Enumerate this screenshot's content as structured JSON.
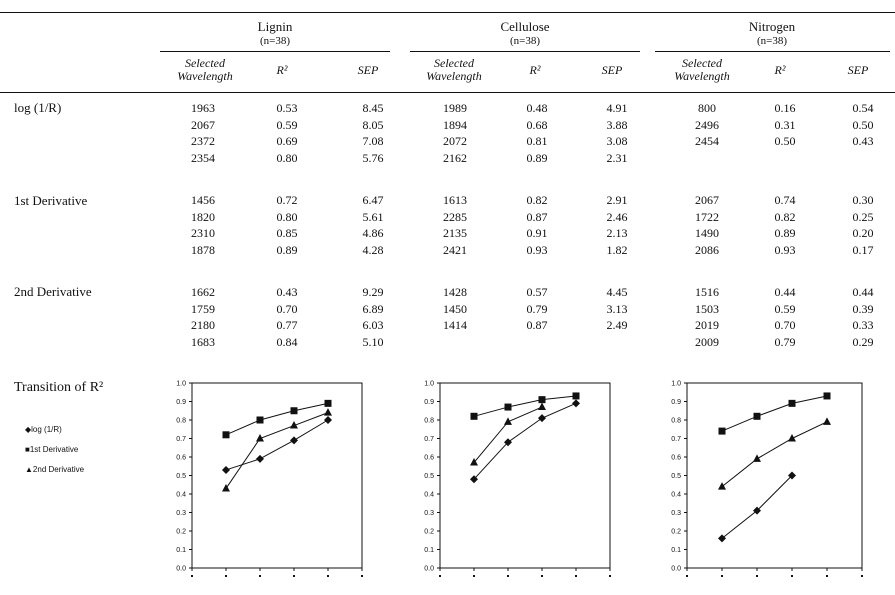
{
  "groups": [
    {
      "name": "Lignin",
      "n": "(n=38)"
    },
    {
      "name": "Cellulose",
      "n": "(n=38)"
    },
    {
      "name": "Nitrogen",
      "n": "(n=38)"
    }
  ],
  "col_headers": {
    "wavelength_line1": "Selected",
    "wavelength_line2": "Wavelength",
    "r2": "R²",
    "sep": "SEP"
  },
  "row_labels": {
    "log": "log (1/R)",
    "d1": "1st Derivative",
    "d2": "2nd Derivative",
    "transition": "Transition of R²"
  },
  "rows": {
    "log": [
      [
        "1963",
        "0.53",
        "8.45",
        "1989",
        "0.48",
        "4.91",
        "800",
        "0.16",
        "0.54"
      ],
      [
        "2067",
        "0.59",
        "8.05",
        "1894",
        "0.68",
        "3.88",
        "2496",
        "0.31",
        "0.50"
      ],
      [
        "2372",
        "0.69",
        "7.08",
        "2072",
        "0.81",
        "3.08",
        "2454",
        "0.50",
        "0.43"
      ],
      [
        "2354",
        "0.80",
        "5.76",
        "2162",
        "0.89",
        "2.31",
        "",
        "",
        ""
      ]
    ],
    "d1": [
      [
        "1456",
        "0.72",
        "6.47",
        "1613",
        "0.82",
        "2.91",
        "2067",
        "0.74",
        "0.30"
      ],
      [
        "1820",
        "0.80",
        "5.61",
        "2285",
        "0.87",
        "2.46",
        "1722",
        "0.82",
        "0.25"
      ],
      [
        "2310",
        "0.85",
        "4.86",
        "2135",
        "0.91",
        "2.13",
        "1490",
        "0.89",
        "0.20"
      ],
      [
        "1878",
        "0.89",
        "4.28",
        "2421",
        "0.93",
        "1.82",
        "2086",
        "0.93",
        "0.17"
      ]
    ],
    "d2": [
      [
        "1662",
        "0.43",
        "9.29",
        "1428",
        "0.57",
        "4.45",
        "1516",
        "0.44",
        "0.44"
      ],
      [
        "1759",
        "0.70",
        "6.89",
        "1450",
        "0.79",
        "3.13",
        "1503",
        "0.59",
        "0.39"
      ],
      [
        "2180",
        "0.77",
        "6.03",
        "1414",
        "0.87",
        "2.49",
        "2019",
        "0.70",
        "0.33"
      ],
      [
        "1683",
        "0.84",
        "5.10",
        "",
        "",
        "",
        "2009",
        "0.79",
        "0.29"
      ]
    ]
  },
  "legend": {
    "log": "log (1/R)",
    "d1": "1st Derivative",
    "d2": "2nd Derivative"
  },
  "chart_data": [
    {
      "type": "line",
      "title": "Lignin",
      "ylim": [
        0,
        1.0
      ],
      "yticks": [
        "0.0",
        "0.1",
        "0.2",
        "0.3",
        "0.4",
        "0.5",
        "0.6",
        "0.7",
        "0.8",
        "0.9",
        "1.0"
      ],
      "xlim": [
        0,
        5
      ],
      "x": [
        1,
        2,
        3,
        4
      ],
      "series": [
        {
          "name": "log (1/R)",
          "marker": "diamond",
          "values": [
            0.53,
            0.59,
            0.69,
            0.8
          ]
        },
        {
          "name": "1st Derivative",
          "marker": "square",
          "values": [
            0.72,
            0.8,
            0.85,
            0.89
          ]
        },
        {
          "name": "2nd Derivative",
          "marker": "triangle",
          "values": [
            0.43,
            0.7,
            0.77,
            0.84
          ]
        }
      ]
    },
    {
      "type": "line",
      "title": "Cellulose",
      "ylim": [
        0,
        1.0
      ],
      "yticks": [
        "0.0",
        "0.1",
        "0.2",
        "0.3",
        "0.4",
        "0.5",
        "0.6",
        "0.7",
        "0.8",
        "0.9",
        "1.0"
      ],
      "xlim": [
        0,
        5
      ],
      "x": [
        1,
        2,
        3,
        4
      ],
      "series": [
        {
          "name": "log (1/R)",
          "marker": "diamond",
          "values": [
            0.48,
            0.68,
            0.81,
            0.89
          ]
        },
        {
          "name": "1st Derivative",
          "marker": "square",
          "values": [
            0.82,
            0.87,
            0.91,
            0.93
          ]
        },
        {
          "name": "2nd Derivative",
          "marker": "triangle",
          "values": [
            0.57,
            0.79,
            0.87,
            null
          ]
        }
      ]
    },
    {
      "type": "line",
      "title": "Nitrogen",
      "ylim": [
        0,
        1.0
      ],
      "yticks": [
        "0.0",
        "0.1",
        "0.2",
        "0.3",
        "0.4",
        "0.5",
        "0.6",
        "0.7",
        "0.8",
        "0.9",
        "1.0"
      ],
      "xlim": [
        0,
        5
      ],
      "x": [
        1,
        2,
        3,
        4
      ],
      "series": [
        {
          "name": "log (1/R)",
          "marker": "diamond",
          "values": [
            0.16,
            0.31,
            0.5,
            null
          ]
        },
        {
          "name": "1st Derivative",
          "marker": "square",
          "values": [
            0.74,
            0.82,
            0.89,
            0.93
          ]
        },
        {
          "name": "2nd Derivative",
          "marker": "triangle",
          "values": [
            0.44,
            0.59,
            0.7,
            0.79
          ]
        }
      ]
    }
  ]
}
